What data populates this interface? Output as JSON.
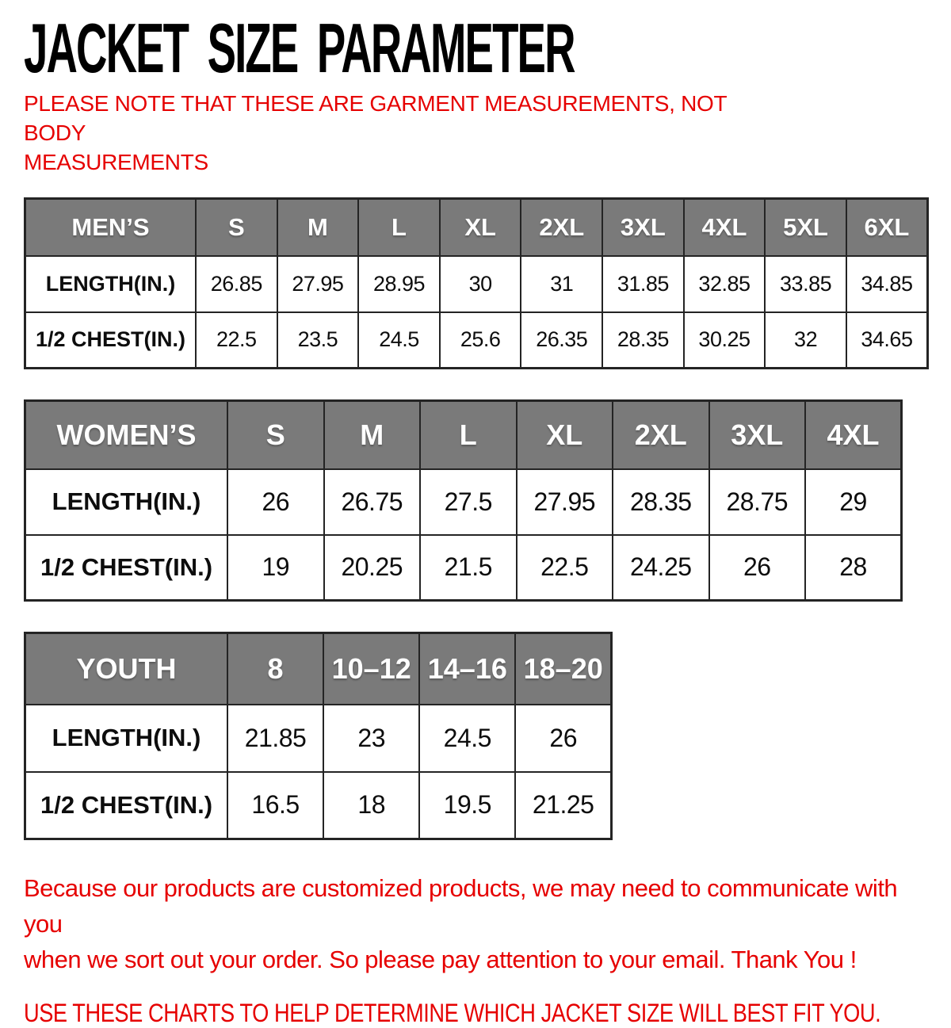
{
  "page": {
    "title": "JACKET SIZE PARAMETER",
    "note": {
      "line1": "PLEASE NOTE THAT THESE ARE GARMENT MEASUREMENTS, NOT BODY",
      "line2": "MEASUREMENTS"
    }
  },
  "tables": [
    {
      "key": "mens",
      "header": [
        "MEN’S",
        "S",
        "M",
        "L",
        "XL",
        "2XL",
        "3XL",
        "4XL",
        "5XL",
        "6XL"
      ],
      "rows": [
        {
          "label": "LENGTH(IN.)",
          "values": [
            "26.85",
            "27.95",
            "28.95",
            "30",
            "31",
            "31.85",
            "32.85",
            "33.85",
            "34.85"
          ]
        },
        {
          "label": "1/2 CHEST(IN.)",
          "values": [
            "22.5",
            "23.5",
            "24.5",
            "25.6",
            "26.35",
            "28.35",
            "30.25",
            "32",
            "34.65"
          ]
        }
      ]
    },
    {
      "key": "womens",
      "header": [
        "WOMEN’S",
        "S",
        "M",
        "L",
        "XL",
        "2XL",
        "3XL",
        "4XL"
      ],
      "rows": [
        {
          "label": "LENGTH(IN.)",
          "values": [
            "26",
            "26.75",
            "27.5",
            "27.95",
            "28.35",
            "28.75",
            "29"
          ]
        },
        {
          "label": "1/2 CHEST(IN.)",
          "values": [
            "19",
            "20.25",
            "21.5",
            "22.5",
            "24.25",
            "26",
            "28"
          ]
        }
      ]
    },
    {
      "key": "youth",
      "header": [
        "YOUTH",
        "8",
        "10–12",
        "14–16",
        "18–20"
      ],
      "rows": [
        {
          "label": "LENGTH(IN.)",
          "values": [
            "21.85",
            "23",
            "24.5",
            "26"
          ]
        },
        {
          "label": "1/2 CHEST(IN.)",
          "values": [
            "16.5",
            "18",
            "19.5",
            "21.25"
          ]
        }
      ]
    }
  ],
  "footer": {
    "customization_note_line1": "Because our products are customized products, we may need to communicate with you",
    "customization_note_line2": "when we sort out your order. So please pay attention to your email. Thank You !",
    "usage_note": "USE THESE CHARTS TO HELP DETERMINE WHICH JACKET SIZE WILL BEST FIT YOU."
  },
  "colors": {
    "accent_red": "#e60000",
    "header_gray": "#7a7a7a",
    "border": "#242424",
    "title_black": "#000000"
  }
}
